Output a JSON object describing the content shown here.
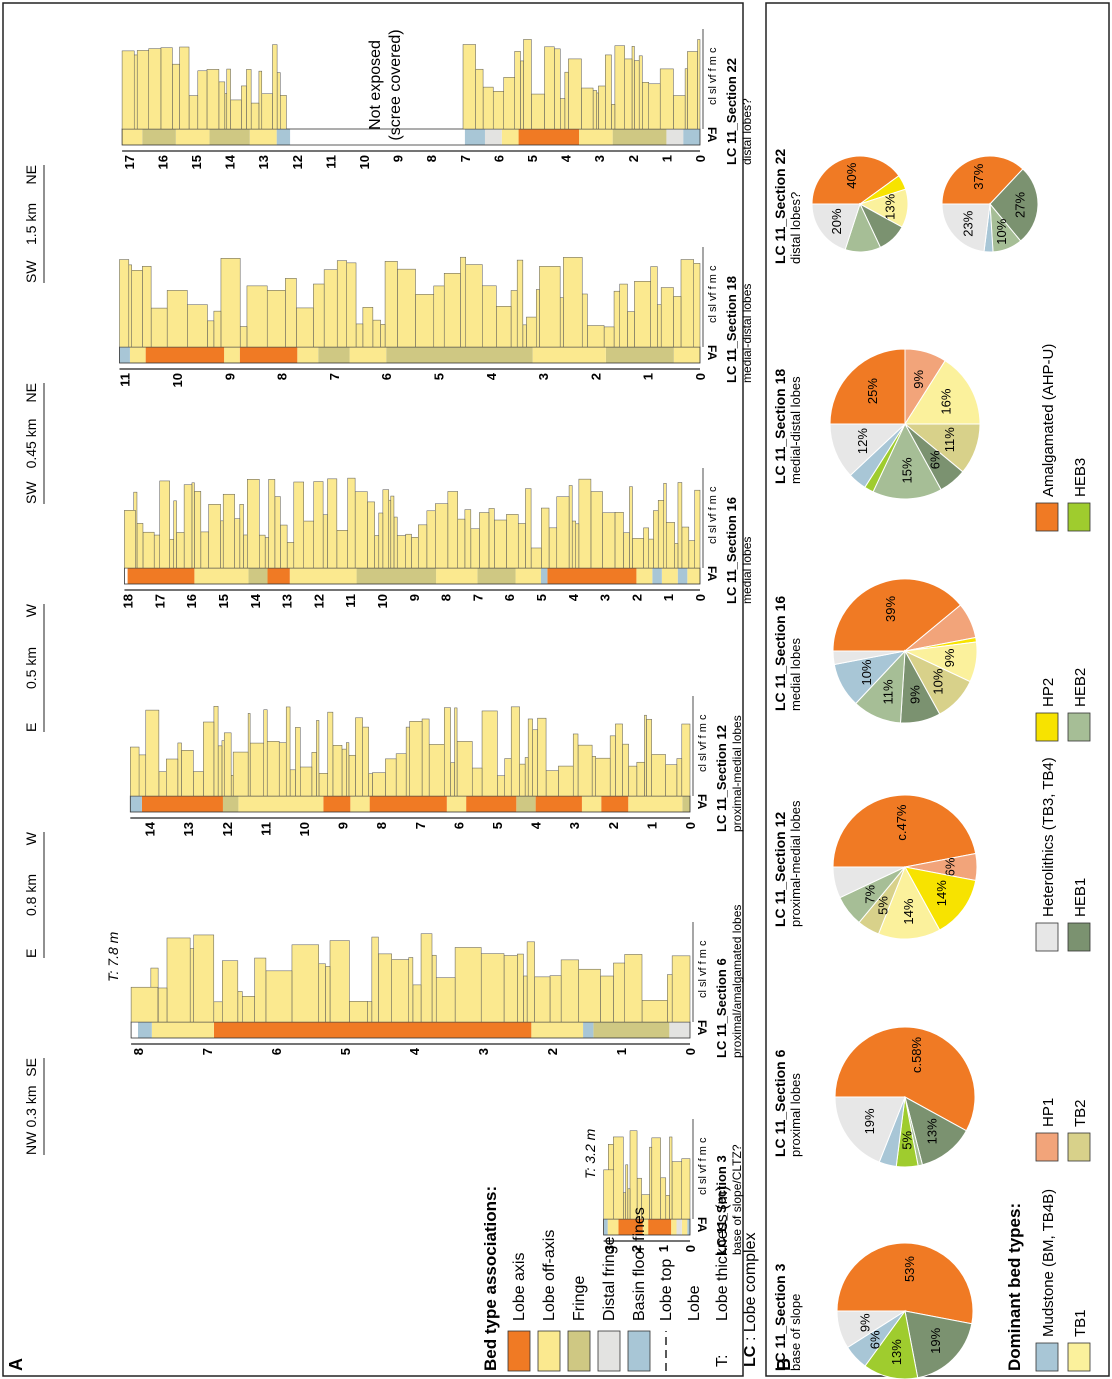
{
  "colors": {
    "lobe_axis": "#f07a24",
    "lobe_off_axis": "#fbe98f",
    "fringe": "#cfc883",
    "distal_fringe": "#e3e3e1",
    "basin_floor": "#a8c6d6",
    "mudstone": "#a8c6d6",
    "hp1": "#f2a47a",
    "hp2": "#f7e300",
    "heterolithics": "#e7e7e7",
    "tb1": "#fbf19c",
    "tb2": "#d8d18a",
    "heb1": "#7b9270",
    "heb2": "#a6be96",
    "heb3": "#9fcc2e",
    "amalgamated": "#f07a24"
  },
  "panel_a": {
    "label": "A",
    "y_axis_title": "Thickness (m)",
    "fa_label": "FA",
    "grain_label": "cl sl vf f m c",
    "sections": [
      {
        "id": "s3",
        "title": "LC 11_Section 3",
        "subtitle": "base of slope/CLTZ?",
        "ticks": [
          "0",
          "1",
          "2",
          "3"
        ],
        "thickness": "T: 3.2 m",
        "fa": [
          [
            "bf",
            0,
            0.1
          ],
          [
            "off",
            0.1,
            0.3
          ],
          [
            "df",
            0.3,
            0.5
          ],
          [
            "off",
            0.5,
            0.7
          ],
          [
            "axis",
            0.7,
            1.55
          ],
          [
            "off",
            1.55,
            1.75
          ],
          [
            "axis",
            1.75,
            2.65
          ],
          [
            "off",
            2.65,
            3.05
          ],
          [
            "bf",
            3.05,
            3.2
          ]
        ],
        "max": 3.3
      },
      {
        "id": "s6",
        "title": "LC 11_Section 6",
        "subtitle": "proximal/amalgamated lobes",
        "ticks": [
          "0",
          "1",
          "2",
          "3",
          "4",
          "5",
          "6",
          "7",
          "8"
        ],
        "thickness": "T: 7.8 m",
        "fa": [
          [
            "df",
            0,
            0.3
          ],
          [
            "fringe",
            0.3,
            1.4
          ],
          [
            "bf",
            1.4,
            1.55
          ],
          [
            "off",
            1.55,
            2.3
          ],
          [
            "axis",
            2.3,
            6.9
          ],
          [
            "off",
            6.9,
            7.8
          ],
          [
            "bf",
            7.8,
            8.0
          ]
        ],
        "max": 8.2
      },
      {
        "id": "s12",
        "title": "LC 11_Section 12",
        "subtitle": "proximal-medial lobes",
        "ticks": [
          "0",
          "1",
          "2",
          "3",
          "4",
          "5",
          "6",
          "7",
          "8",
          "9",
          "10",
          "11",
          "12",
          "13",
          "14"
        ],
        "fa": [
          [
            "fringe",
            0,
            0.2
          ],
          [
            "off",
            0.2,
            1.6
          ],
          [
            "axis",
            1.6,
            2.3
          ],
          [
            "off",
            2.3,
            2.8
          ],
          [
            "axis",
            2.8,
            4.0
          ],
          [
            "fringe",
            4.0,
            4.5
          ],
          [
            "axis",
            4.5,
            5.8
          ],
          [
            "off",
            5.8,
            6.3
          ],
          [
            "axis",
            6.3,
            8.3
          ],
          [
            "off",
            8.3,
            8.8
          ],
          [
            "axis",
            8.8,
            9.5
          ],
          [
            "off",
            9.5,
            11.7
          ],
          [
            "fringe",
            11.7,
            12.1
          ],
          [
            "axis",
            12.1,
            14.2
          ],
          [
            "bf",
            14.2,
            14.5
          ]
        ],
        "max": 14.6
      },
      {
        "id": "s16",
        "title": "LC 11_Section 16",
        "subtitle": "medial lobes",
        "ticks": [
          "0",
          "1",
          "2",
          "3",
          "4",
          "5",
          "6",
          "7",
          "8",
          "9",
          "10",
          "11",
          "12",
          "13",
          "14",
          "15",
          "16",
          "17",
          "18"
        ],
        "fa": [
          [
            "off",
            0,
            0.4
          ],
          [
            "bf",
            0.4,
            0.7
          ],
          [
            "off",
            0.7,
            1.2
          ],
          [
            "bf",
            1.2,
            1.5
          ],
          [
            "off",
            1.5,
            2.0
          ],
          [
            "axis",
            2.0,
            4.8
          ],
          [
            "bf",
            4.8,
            5.0
          ],
          [
            "off",
            5.0,
            5.8
          ],
          [
            "fringe",
            5.8,
            7.0
          ],
          [
            "off",
            7.0,
            8.3
          ],
          [
            "fringe",
            8.3,
            10.8
          ],
          [
            "off",
            10.8,
            12.9
          ],
          [
            "axis",
            12.9,
            13.6
          ],
          [
            "fringe",
            13.6,
            14.2
          ],
          [
            "off",
            14.2,
            15.9
          ],
          [
            "axis",
            15.9,
            18.0
          ]
        ],
        "max": 18.2
      },
      {
        "id": "s18",
        "title": "LC 11_Section 18",
        "subtitle": "medial-distal lobes",
        "ticks": [
          "0",
          "1",
          "2",
          "3",
          "4",
          "5",
          "6",
          "7",
          "8",
          "9",
          "10",
          "11"
        ],
        "fa": [
          [
            "off",
            0,
            0.5
          ],
          [
            "fringe",
            0.5,
            1.8
          ],
          [
            "off",
            1.8,
            3.2
          ],
          [
            "fringe",
            3.2,
            6.0
          ],
          [
            "off",
            6.0,
            6.7
          ],
          [
            "fringe",
            6.7,
            7.3
          ],
          [
            "off",
            7.3,
            7.7
          ],
          [
            "axis",
            7.7,
            8.8
          ],
          [
            "off",
            8.8,
            9.1
          ],
          [
            "axis",
            9.1,
            10.6
          ],
          [
            "off",
            10.6,
            10.9
          ],
          [
            "bf",
            10.9,
            11.1
          ]
        ],
        "max": 11.2
      },
      {
        "id": "s22",
        "title": "LC 11_Section 22",
        "subtitle": "distal lobes?",
        "ticks": [
          "0",
          "1",
          "2",
          "3",
          "4",
          "5",
          "6",
          "7",
          "8",
          "9",
          "10",
          "11",
          "12",
          "13",
          "14",
          "15",
          "16",
          "17"
        ],
        "fa": [
          [
            "bf",
            0,
            0.5
          ],
          [
            "df",
            0.5,
            1.0
          ],
          [
            "fringe",
            1.0,
            2.6
          ],
          [
            "off",
            2.6,
            3.6
          ],
          [
            "axis",
            3.6,
            5.4
          ],
          [
            "off",
            5.4,
            5.9
          ],
          [
            "df",
            5.9,
            6.4
          ],
          [
            "bf",
            6.4,
            7.0
          ],
          [
            "gap",
            7.0,
            12.2
          ],
          [
            "bf",
            12.2,
            12.6
          ],
          [
            "off",
            12.6,
            13.4
          ],
          [
            "fringe",
            13.4,
            14.6
          ],
          [
            "off",
            14.6,
            15.6
          ],
          [
            "fringe",
            15.6,
            16.6
          ],
          [
            "off",
            16.6,
            17.2
          ]
        ],
        "max": 17.3
      }
    ],
    "distances": [
      {
        "left": "NW",
        "value": "0.3 km",
        "right": "SE"
      },
      {
        "left": "E",
        "value": "0.8 km",
        "right": "W"
      },
      {
        "left": "E",
        "value": "0.5 km",
        "right": "W"
      },
      {
        "left": "SW",
        "value": "0.45 km",
        "right": "NE"
      },
      {
        "left": "SW",
        "value": "1.5 km",
        "right": "NE"
      }
    ],
    "not_exposed": "Not exposed",
    "scree": "(scree covered)",
    "question": "?"
  },
  "legend": {
    "title": "Bed type associations:",
    "items": [
      "Lobe axis",
      "Lobe off-axis",
      "Fringe",
      "Distal fringe",
      "Basin floor fines"
    ],
    "lobe_top": "Lobe top",
    "lobe": "Lobe",
    "t_key": "T:",
    "t_text": "Lobe thickness (m)",
    "lc_key": "LC",
    "lc_text": ": Lobe complex"
  },
  "panel_b": {
    "label": "B",
    "title": "Dominant bed types:",
    "types": [
      {
        "key": "mudstone",
        "label": "Mudstone (BM, TB4B)"
      },
      {
        "key": "hp1",
        "label": "HP1"
      },
      {
        "key": "heterolithics",
        "label": "Heterolithics (TB3, TB4)"
      },
      {
        "key": "hp2",
        "label": "HP2"
      },
      {
        "key": "amalgamated",
        "label": "Amalgamated (AHP-U)"
      },
      {
        "key": "tb1",
        "label": "TB1"
      },
      {
        "key": "tb2",
        "label": "TB2"
      },
      {
        "key": "heb1",
        "label": "HEB1"
      },
      {
        "key": "heb2",
        "label": "HEB2"
      },
      {
        "key": "heb3",
        "label": "HEB3"
      }
    ]
  },
  "chart_data": [
    {
      "type": "pie",
      "title": "LC 11_Section 3",
      "subtitle": "base of slope",
      "series": [
        {
          "name": "Amalgamated (AHP-U)",
          "value": 53,
          "label": "53%"
        },
        {
          "name": "HEB1",
          "value": 19,
          "label": "19%"
        },
        {
          "name": "HEB3",
          "value": 13,
          "label": "13%"
        },
        {
          "name": "Mudstone (BM, TB4B)",
          "value": 6,
          "label": "6%"
        },
        {
          "name": "Heterolithics (TB3, TB4)",
          "value": 9,
          "label": "9%"
        }
      ]
    },
    {
      "type": "pie",
      "title": "LC 11_Section 6",
      "subtitle": "proximal lobes",
      "series": [
        {
          "name": "Amalgamated (AHP-U)",
          "value": 58,
          "label": "c.58%"
        },
        {
          "name": "HEB1",
          "value": 13,
          "label": "13%"
        },
        {
          "name": "HEB2",
          "value": 1,
          "label": ""
        },
        {
          "name": "HEB3",
          "value": 5,
          "label": "5%"
        },
        {
          "name": "Mudstone (BM, TB4B)",
          "value": 4,
          "label": ""
        },
        {
          "name": "Heterolithics (TB3, TB4)",
          "value": 19,
          "label": "19%"
        }
      ]
    },
    {
      "type": "pie",
      "title": "LC 11_Section 12",
      "subtitle": "proximal-medial lobes",
      "series": [
        {
          "name": "Amalgamated (AHP-U)",
          "value": 47,
          "label": "c.47%"
        },
        {
          "name": "HP1",
          "value": 6,
          "label": "6%"
        },
        {
          "name": "HP2",
          "value": 14,
          "label": "14%"
        },
        {
          "name": "TB1",
          "value": 14,
          "label": "14%"
        },
        {
          "name": "TB2",
          "value": 5,
          "label": "5%"
        },
        {
          "name": "HEB2",
          "value": 7,
          "label": "7%"
        },
        {
          "name": "Heterolithics (TB3, TB4)",
          "value": 7,
          "label": ""
        }
      ]
    },
    {
      "type": "pie",
      "title": "LC 11_Section 16",
      "subtitle": "medial lobes",
      "series": [
        {
          "name": "Amalgamated (AHP-U)",
          "value": 39,
          "label": "39%"
        },
        {
          "name": "HP1",
          "value": 8,
          "label": ""
        },
        {
          "name": "HP2",
          "value": 1,
          "label": ""
        },
        {
          "name": "TB1",
          "value": 9,
          "label": "9%"
        },
        {
          "name": "TB2",
          "value": 10,
          "label": "10%"
        },
        {
          "name": "HEB1",
          "value": 9,
          "label": "9%"
        },
        {
          "name": "HEB2",
          "value": 11,
          "label": "11%"
        },
        {
          "name": "Mudstone (BM, TB4B)",
          "value": 10,
          "label": "10%"
        },
        {
          "name": "Heterolithics (TB3, TB4)",
          "value": 3,
          "label": ""
        }
      ]
    },
    {
      "type": "pie",
      "title": "LC 11_Section 18",
      "subtitle": "medial-distal lobes",
      "series": [
        {
          "name": "Amalgamated (AHP-U)",
          "value": 25,
          "label": "25%"
        },
        {
          "name": "HP1",
          "value": 9,
          "label": "9%"
        },
        {
          "name": "TB1",
          "value": 16,
          "label": "16%"
        },
        {
          "name": "TB2",
          "value": 11,
          "label": "11%"
        },
        {
          "name": "HEB1",
          "value": 6,
          "label": "6%"
        },
        {
          "name": "HEB2",
          "value": 15,
          "label": "15%"
        },
        {
          "name": "HEB3",
          "value": 2,
          "label": ""
        },
        {
          "name": "Mudstone (BM, TB4B)",
          "value": 4,
          "label": ""
        },
        {
          "name": "Heterolithics (TB3, TB4)",
          "value": 12,
          "label": "12%"
        }
      ]
    },
    {
      "type": "pie",
      "title": "LC 11_Section 22",
      "subtitle": "distal lobes?",
      "series": [
        {
          "name": "Amalgamated (AHP-U)",
          "value": 40,
          "label": "40%"
        },
        {
          "name": "HP2",
          "value": 5,
          "label": ""
        },
        {
          "name": "TB1",
          "value": 13,
          "label": "13%"
        },
        {
          "name": "HEB1",
          "value": 10,
          "label": ""
        },
        {
          "name": "HEB2",
          "value": 12,
          "label": ""
        },
        {
          "name": "Heterolithics (TB3, TB4)",
          "value": 20,
          "label": "20%"
        }
      ]
    },
    {
      "type": "pie",
      "title": "",
      "subtitle": "",
      "series": [
        {
          "name": "Amalgamated (AHP-U)",
          "value": 37,
          "label": "37%"
        },
        {
          "name": "HEB1",
          "value": 27,
          "label": "27%"
        },
        {
          "name": "HEB2",
          "value": 10,
          "label": "10%"
        },
        {
          "name": "Mudstone (BM, TB4B)",
          "value": 3,
          "label": ""
        },
        {
          "name": "Heterolithics (TB3, TB4)",
          "value": 23,
          "label": "23%"
        }
      ]
    }
  ]
}
